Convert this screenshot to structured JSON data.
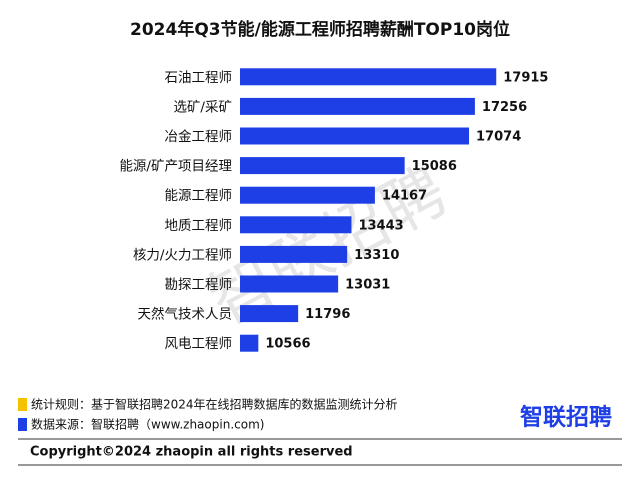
{
  "chart_data": {
    "type": "hbar",
    "title": "2024年Q3节能/能源工程师招聘薪酬TOP10岗位",
    "categories": [
      "石油工程师",
      "选矿/采矿",
      "冶金工程师",
      "能源/矿产项目经理",
      "能源工程师",
      "地质工程师",
      "核力/火力工程师",
      "勘探工程师",
      "天然气技术人员",
      "风电工程师"
    ],
    "values": [
      17915,
      17256,
      17074,
      15086,
      14167,
      13443,
      13310,
      13031,
      11796,
      10566
    ],
    "color": "#1f3fe6",
    "xlim": [
      10000,
      18000
    ]
  },
  "notes": [
    {
      "text": "统计规则：基于智联招聘2024年在线招聘数据库的数据监测统计分析",
      "color": "#f5c200"
    },
    {
      "text": "数据来源：智联招聘（www.zhaopin.com)",
      "color": "#1f3fe6"
    }
  ],
  "watermark": "智联招聘",
  "logo": "智联招聘",
  "copyright": "Copyright©2024 zhaopin all rights reserved"
}
